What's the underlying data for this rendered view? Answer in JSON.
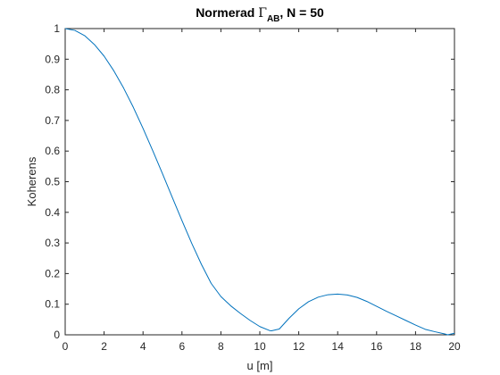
{
  "chart_data": {
    "type": "line",
    "title": {
      "prefix": "Normerad ",
      "symbol": "Γ",
      "subscript": "AB",
      "suffix": ", N = 50"
    },
    "xlabel": "u [m]",
    "ylabel": "Koherens",
    "xlim": [
      0,
      20
    ],
    "ylim": [
      0,
      1
    ],
    "xticks": [
      0,
      2,
      4,
      6,
      8,
      10,
      12,
      14,
      16,
      18,
      20
    ],
    "yticks": [
      0,
      0.1,
      0.2,
      0.3,
      0.4,
      0.5,
      0.6,
      0.7,
      0.8,
      0.9,
      1
    ],
    "grid": false,
    "series": [
      {
        "color": "#0072bd",
        "x": [
          0,
          0.5,
          1,
          1.5,
          2,
          2.5,
          3,
          3.5,
          4,
          4.5,
          5,
          5.5,
          6,
          6.5,
          7,
          7.5,
          8,
          8.5,
          9,
          9.5,
          10,
          10.5,
          10.6,
          11,
          11.5,
          12,
          12.5,
          13,
          13.5,
          14,
          14.5,
          15,
          15.5,
          16,
          16.5,
          17,
          17.5,
          18,
          18.5,
          19,
          19.5,
          19.65,
          20
        ],
        "y": [
          1.0,
          0.994,
          0.977,
          0.948,
          0.91,
          0.862,
          0.806,
          0.743,
          0.674,
          0.601,
          0.526,
          0.449,
          0.373,
          0.299,
          0.23,
          0.168,
          0.125,
          0.095,
          0.07,
          0.047,
          0.027,
          0.014,
          0.013,
          0.019,
          0.054,
          0.085,
          0.108,
          0.123,
          0.131,
          0.133,
          0.13,
          0.122,
          0.109,
          0.093,
          0.077,
          0.062,
          0.047,
          0.032,
          0.018,
          0.01,
          0.003,
          0.0,
          0.005
        ]
      }
    ]
  }
}
